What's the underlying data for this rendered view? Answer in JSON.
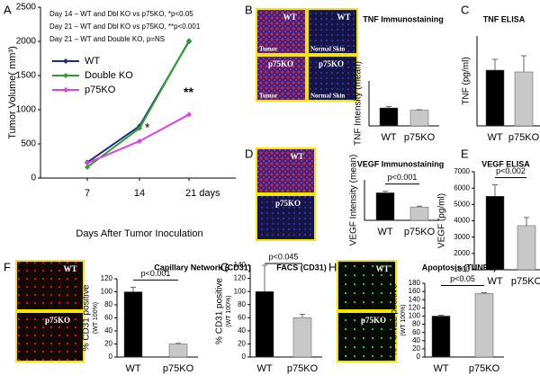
{
  "chart_data": [
    {
      "type": "line",
      "panel": "A",
      "x_label": "Days After Tumor Inoculation",
      "y_label": "Tumor Volume( mm³)",
      "categories": [
        "7",
        "14",
        "21 days"
      ],
      "ylim": [
        0,
        2500
      ],
      "yticks": [
        0,
        500,
        1000,
        1500,
        2000,
        2500
      ],
      "notes": [
        "Day 14 – WT and Dbl KO vs p75KO, *p<0.05",
        "Day 21 – WT and Dbl KO vs p75KO, **p<0.001",
        "Day 21 – WT and Double KO, p=NS"
      ],
      "markers": [
        "*",
        "**"
      ],
      "series": [
        {
          "name": "WT",
          "color": "#1f2a8c",
          "values": [
            230,
            760,
            2000
          ]
        },
        {
          "name": "Double KO",
          "color": "#2ca02c",
          "values": [
            160,
            730,
            2010
          ]
        },
        {
          "name": "p75KO",
          "color": "#e040e0",
          "values": [
            220,
            540,
            930
          ]
        }
      ]
    },
    {
      "type": "bar",
      "panel": "B",
      "title": "TNF Immunostaining",
      "y_label": "TNF Intensity (mean)",
      "image_labels": [
        "WT",
        "WT",
        "Tumor",
        "Normal Skin",
        "p75KO",
        "p75KO",
        "Tumor",
        "Normal Skin"
      ],
      "categories": [
        "WT",
        "p75KO"
      ],
      "values": [
        40,
        35
      ],
      "errors": [
        3,
        1
      ],
      "colors": [
        "#000000",
        "#c8c8c8"
      ],
      "ylim": [
        0,
        100
      ]
    },
    {
      "type": "bar",
      "panel": "C",
      "title": "TNF ELISA",
      "y_label": "TNF (pg/ml)",
      "categories": [
        "WT",
        "p75KO"
      ],
      "values": [
        62,
        60
      ],
      "errors": [
        12,
        18
      ],
      "colors": [
        "#000000",
        "#c8c8c8"
      ],
      "ylim": [
        0,
        100
      ]
    },
    {
      "type": "bar",
      "panel": "D",
      "title": "VEGF Immunostaining",
      "y_label": "VEGF Intensity (mean)",
      "annotation": "p<0.001",
      "image_labels": [
        "WT",
        "p75KO"
      ],
      "categories": [
        "WT",
        "p75KO"
      ],
      "values": [
        68,
        33
      ],
      "errors": [
        4,
        2
      ],
      "colors": [
        "#000000",
        "#c8c8c8"
      ],
      "ylim": [
        0,
        100
      ]
    },
    {
      "type": "bar",
      "panel": "E",
      "title": "VEGF ELISA",
      "y_label": "VEGF (pg/ml)",
      "annotation": "p<0.002",
      "categories": [
        "WT",
        "p75KO"
      ],
      "values": [
        5500,
        3700
      ],
      "errors": [
        700,
        500
      ],
      "colors": [
        "#000000",
        "#c8c8c8"
      ],
      "ylim": [
        1000,
        7000
      ],
      "yticks": [
        1000,
        2000,
        3000,
        4000,
        5000,
        6000,
        7000
      ]
    },
    {
      "type": "bar",
      "panel": "F",
      "title": "Capillary Network (CD31)",
      "y_label": "% CD31 positive",
      "y_label_note": "(WT 100%)",
      "annotation": "p<0.001",
      "image_labels": [
        "WT",
        "p75KO"
      ],
      "categories": [
        "WT",
        "p75KO"
      ],
      "values": [
        100,
        20
      ],
      "errors": [
        7,
        1
      ],
      "colors": [
        "#000000",
        "#c8c8c8"
      ],
      "ylim": [
        0,
        120
      ],
      "yticks": [
        0,
        20,
        40,
        60,
        80,
        100,
        120
      ]
    },
    {
      "type": "bar",
      "panel": "G",
      "title": "FACS (CD31)",
      "y_label": "% CD31 positive",
      "y_label_note": "(WT 100%)",
      "annotation": "p<0.045",
      "categories": [
        "WT",
        "p75KO"
      ],
      "values": [
        100,
        60
      ],
      "errors": [
        40,
        5
      ],
      "colors": [
        "#000000",
        "#c8c8c8"
      ],
      "ylim": [
        0,
        140
      ],
      "yticks": [
        0,
        20,
        40,
        60,
        80,
        100,
        120,
        140
      ]
    },
    {
      "type": "bar",
      "panel": "H",
      "title": "Apoptosis (TUNEL)",
      "y_label": "% TUNEL positive",
      "y_label_note": "(WT 100%)",
      "annotation": "p<0.05",
      "image_labels": [
        "WT",
        "p75KO"
      ],
      "categories": [
        "WT",
        "p75KO"
      ],
      "values": [
        100,
        155
      ],
      "errors": [
        2,
        2
      ],
      "colors": [
        "#000000",
        "#c8c8c8"
      ],
      "ylim": [
        0,
        180
      ],
      "yticks": [
        0,
        20,
        40,
        60,
        80,
        100,
        120,
        140,
        160,
        180
      ]
    }
  ]
}
